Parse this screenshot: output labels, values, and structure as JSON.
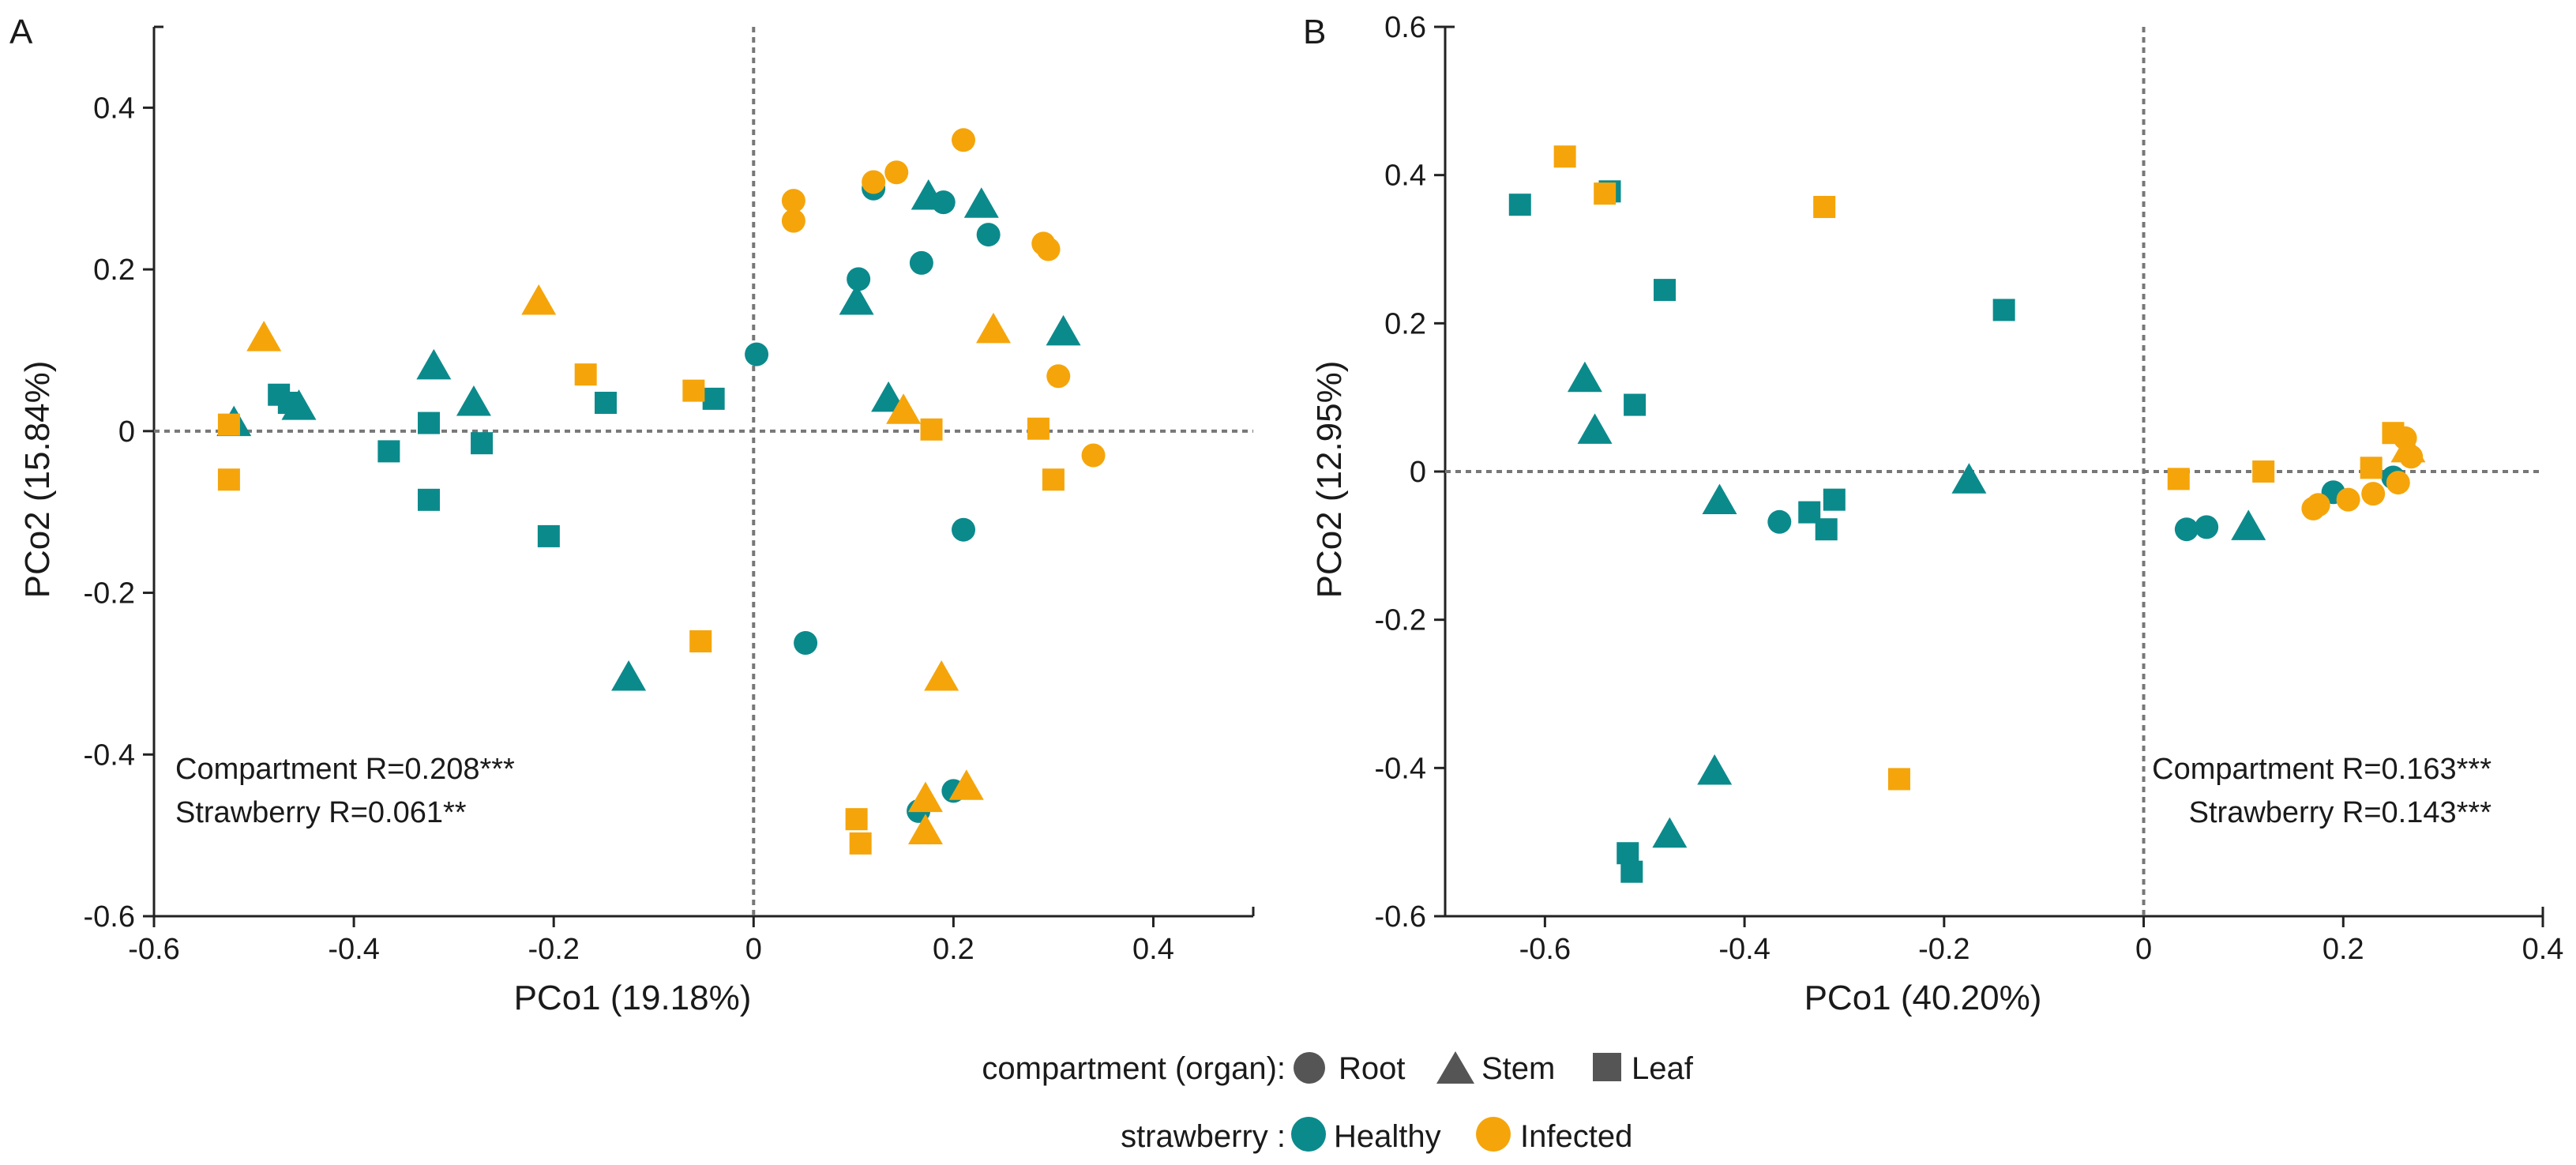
{
  "colors": {
    "healthy": "#0b8a8c",
    "infected": "#f5a50a",
    "axis": "#222222",
    "refline": "#777777",
    "legend_shape": "#555555"
  },
  "legend": {
    "compartment_title": "compartment (organ):",
    "compartment_items": [
      {
        "shape": "circle",
        "label": "Root"
      },
      {
        "shape": "triangle",
        "label": "Stem"
      },
      {
        "shape": "square",
        "label": "Leaf"
      }
    ],
    "strawberry_title": "strawberry :",
    "strawberry_items": [
      {
        "key": "healthy",
        "label": "Healthy"
      },
      {
        "key": "infected",
        "label": "Infected"
      }
    ]
  },
  "chart_data": [
    {
      "type": "scatter",
      "panel_label": "A",
      "xlabel": "PCo1 (19.18%)",
      "ylabel": "PCo2 (15.84%)",
      "xlim": [
        -0.6,
        0.5
      ],
      "ylim": [
        -0.6,
        0.5
      ],
      "xticks": [
        -0.6,
        -0.4,
        -0.2,
        0,
        0.2,
        0.4
      ],
      "yticks": [
        -0.6,
        -0.4,
        -0.2,
        0,
        0.2,
        0.4
      ],
      "xtick_labels": [
        "-0.6",
        "-0.4",
        "-0.2",
        "0",
        "0.2",
        "0.4"
      ],
      "ytick_labels": [
        "-0.6",
        "-0.4",
        "-0.2",
        "0",
        "0.2",
        "0.4"
      ],
      "annotations": [
        "Compartment  R=0.208***",
        "Strawberry R=0.061**"
      ],
      "annotation_position": "bottom-left",
      "points": [
        {
          "x": -0.52,
          "y": 0.01,
          "shape": "triangle",
          "group": "healthy"
        },
        {
          "x": -0.475,
          "y": 0.045,
          "shape": "square",
          "group": "healthy"
        },
        {
          "x": -0.465,
          "y": 0.035,
          "shape": "square",
          "group": "healthy"
        },
        {
          "x": -0.455,
          "y": 0.03,
          "shape": "triangle",
          "group": "healthy"
        },
        {
          "x": -0.365,
          "y": -0.025,
          "shape": "square",
          "group": "healthy"
        },
        {
          "x": -0.325,
          "y": 0.01,
          "shape": "square",
          "group": "healthy"
        },
        {
          "x": -0.32,
          "y": 0.08,
          "shape": "triangle",
          "group": "healthy"
        },
        {
          "x": -0.325,
          "y": -0.085,
          "shape": "square",
          "group": "healthy"
        },
        {
          "x": -0.28,
          "y": 0.035,
          "shape": "triangle",
          "group": "healthy"
        },
        {
          "x": -0.272,
          "y": -0.015,
          "shape": "square",
          "group": "healthy"
        },
        {
          "x": -0.205,
          "y": -0.13,
          "shape": "square",
          "group": "healthy"
        },
        {
          "x": -0.148,
          "y": 0.035,
          "shape": "square",
          "group": "healthy"
        },
        {
          "x": -0.125,
          "y": -0.305,
          "shape": "triangle",
          "group": "healthy"
        },
        {
          "x": -0.04,
          "y": 0.04,
          "shape": "square",
          "group": "healthy"
        },
        {
          "x": 0.003,
          "y": 0.095,
          "shape": "circle",
          "group": "healthy"
        },
        {
          "x": 0.052,
          "y": -0.262,
          "shape": "circle",
          "group": "healthy"
        },
        {
          "x": 0.103,
          "y": 0.16,
          "shape": "triangle",
          "group": "healthy"
        },
        {
          "x": 0.105,
          "y": 0.188,
          "shape": "circle",
          "group": "healthy"
        },
        {
          "x": 0.12,
          "y": 0.3,
          "shape": "circle",
          "group": "healthy"
        },
        {
          "x": 0.135,
          "y": 0.04,
          "shape": "triangle",
          "group": "healthy"
        },
        {
          "x": 0.165,
          "y": -0.47,
          "shape": "circle",
          "group": "healthy"
        },
        {
          "x": 0.168,
          "y": 0.208,
          "shape": "circle",
          "group": "healthy"
        },
        {
          "x": 0.175,
          "y": 0.29,
          "shape": "triangle",
          "group": "healthy"
        },
        {
          "x": 0.19,
          "y": 0.283,
          "shape": "circle",
          "group": "healthy"
        },
        {
          "x": 0.2,
          "y": -0.445,
          "shape": "circle",
          "group": "healthy"
        },
        {
          "x": 0.21,
          "y": -0.122,
          "shape": "circle",
          "group": "healthy"
        },
        {
          "x": 0.228,
          "y": 0.28,
          "shape": "triangle",
          "group": "healthy"
        },
        {
          "x": 0.235,
          "y": 0.243,
          "shape": "circle",
          "group": "healthy"
        },
        {
          "x": 0.31,
          "y": 0.122,
          "shape": "triangle",
          "group": "healthy"
        },
        {
          "x": -0.525,
          "y": 0.008,
          "shape": "square",
          "group": "infected"
        },
        {
          "x": -0.525,
          "y": -0.06,
          "shape": "square",
          "group": "infected"
        },
        {
          "x": -0.49,
          "y": 0.115,
          "shape": "triangle",
          "group": "infected"
        },
        {
          "x": -0.215,
          "y": 0.16,
          "shape": "triangle",
          "group": "infected"
        },
        {
          "x": -0.168,
          "y": 0.07,
          "shape": "square",
          "group": "infected"
        },
        {
          "x": -0.06,
          "y": 0.05,
          "shape": "square",
          "group": "infected"
        },
        {
          "x": -0.053,
          "y": -0.26,
          "shape": "square",
          "group": "infected"
        },
        {
          "x": 0.04,
          "y": 0.285,
          "shape": "circle",
          "group": "infected"
        },
        {
          "x": 0.04,
          "y": 0.26,
          "shape": "circle",
          "group": "infected"
        },
        {
          "x": 0.103,
          "y": -0.48,
          "shape": "square",
          "group": "infected"
        },
        {
          "x": 0.107,
          "y": -0.51,
          "shape": "square",
          "group": "infected"
        },
        {
          "x": 0.12,
          "y": 0.308,
          "shape": "circle",
          "group": "infected"
        },
        {
          "x": 0.143,
          "y": 0.32,
          "shape": "circle",
          "group": "infected"
        },
        {
          "x": 0.15,
          "y": 0.025,
          "shape": "triangle",
          "group": "infected"
        },
        {
          "x": 0.172,
          "y": -0.455,
          "shape": "triangle",
          "group": "infected"
        },
        {
          "x": 0.172,
          "y": -0.495,
          "shape": "triangle",
          "group": "infected"
        },
        {
          "x": 0.178,
          "y": 0.002,
          "shape": "square",
          "group": "infected"
        },
        {
          "x": 0.188,
          "y": -0.305,
          "shape": "triangle",
          "group": "infected"
        },
        {
          "x": 0.21,
          "y": 0.36,
          "shape": "circle",
          "group": "infected"
        },
        {
          "x": 0.213,
          "y": -0.44,
          "shape": "triangle",
          "group": "infected"
        },
        {
          "x": 0.24,
          "y": 0.125,
          "shape": "triangle",
          "group": "infected"
        },
        {
          "x": 0.285,
          "y": 0.003,
          "shape": "square",
          "group": "infected"
        },
        {
          "x": 0.29,
          "y": 0.232,
          "shape": "circle",
          "group": "infected"
        },
        {
          "x": 0.295,
          "y": 0.225,
          "shape": "circle",
          "group": "infected"
        },
        {
          "x": 0.3,
          "y": -0.06,
          "shape": "square",
          "group": "infected"
        },
        {
          "x": 0.305,
          "y": 0.068,
          "shape": "circle",
          "group": "infected"
        },
        {
          "x": 0.34,
          "y": -0.03,
          "shape": "circle",
          "group": "infected"
        }
      ]
    },
    {
      "type": "scatter",
      "panel_label": "B",
      "xlabel": "PCo1 (40.20%)",
      "ylabel": "PCo2 (12.95%)",
      "xlim": [
        -0.7,
        0.4
      ],
      "ylim": [
        -0.6,
        0.6
      ],
      "xticks": [
        -0.6,
        -0.4,
        -0.2,
        0,
        0.2,
        0.4
      ],
      "yticks": [
        -0.6,
        -0.4,
        -0.2,
        0,
        0.2,
        0.4,
        0.6
      ],
      "xtick_labels": [
        "-0.6",
        "-0.4",
        "-0.2",
        "0",
        "0.2",
        "0.4"
      ],
      "ytick_labels": [
        "-0.6",
        "-0.4",
        "-0.2",
        "0",
        "0.2",
        "0.4",
        "0.6"
      ],
      "annotations": [
        "Compartment  R=0.163***",
        "Strawberry R=0.143***"
      ],
      "annotation_position": "bottom-right",
      "points": [
        {
          "x": -0.625,
          "y": 0.36,
          "shape": "square",
          "group": "healthy"
        },
        {
          "x": -0.535,
          "y": 0.378,
          "shape": "square",
          "group": "healthy"
        },
        {
          "x": -0.56,
          "y": 0.125,
          "shape": "triangle",
          "group": "healthy"
        },
        {
          "x": -0.55,
          "y": 0.055,
          "shape": "triangle",
          "group": "healthy"
        },
        {
          "x": -0.51,
          "y": 0.09,
          "shape": "square",
          "group": "healthy"
        },
        {
          "x": -0.48,
          "y": 0.245,
          "shape": "square",
          "group": "healthy"
        },
        {
          "x": -0.425,
          "y": -0.04,
          "shape": "triangle",
          "group": "healthy"
        },
        {
          "x": -0.365,
          "y": -0.068,
          "shape": "circle",
          "group": "healthy"
        },
        {
          "x": -0.335,
          "y": -0.055,
          "shape": "square",
          "group": "healthy"
        },
        {
          "x": -0.318,
          "y": -0.078,
          "shape": "square",
          "group": "healthy"
        },
        {
          "x": -0.31,
          "y": -0.038,
          "shape": "square",
          "group": "healthy"
        },
        {
          "x": -0.175,
          "y": -0.012,
          "shape": "triangle",
          "group": "healthy"
        },
        {
          "x": -0.14,
          "y": 0.218,
          "shape": "square",
          "group": "healthy"
        },
        {
          "x": -0.43,
          "y": -0.405,
          "shape": "triangle",
          "group": "healthy"
        },
        {
          "x": -0.475,
          "y": -0.49,
          "shape": "triangle",
          "group": "healthy"
        },
        {
          "x": -0.517,
          "y": -0.515,
          "shape": "square",
          "group": "healthy"
        },
        {
          "x": -0.513,
          "y": -0.54,
          "shape": "square",
          "group": "healthy"
        },
        {
          "x": 0.043,
          "y": -0.078,
          "shape": "circle",
          "group": "healthy"
        },
        {
          "x": 0.063,
          "y": -0.075,
          "shape": "circle",
          "group": "healthy"
        },
        {
          "x": 0.105,
          "y": -0.075,
          "shape": "triangle",
          "group": "healthy"
        },
        {
          "x": 0.19,
          "y": -0.028,
          "shape": "circle",
          "group": "healthy"
        },
        {
          "x": 0.25,
          "y": -0.008,
          "shape": "circle",
          "group": "healthy"
        },
        {
          "x": -0.58,
          "y": 0.425,
          "shape": "square",
          "group": "infected"
        },
        {
          "x": -0.54,
          "y": 0.375,
          "shape": "square",
          "group": "infected"
        },
        {
          "x": -0.32,
          "y": 0.357,
          "shape": "square",
          "group": "infected"
        },
        {
          "x": -0.245,
          "y": -0.415,
          "shape": "square",
          "group": "infected"
        },
        {
          "x": 0.035,
          "y": -0.01,
          "shape": "square",
          "group": "infected"
        },
        {
          "x": 0.12,
          "y": 0.0,
          "shape": "square",
          "group": "infected"
        },
        {
          "x": 0.17,
          "y": -0.05,
          "shape": "circle",
          "group": "infected"
        },
        {
          "x": 0.175,
          "y": -0.045,
          "shape": "circle",
          "group": "infected"
        },
        {
          "x": 0.205,
          "y": -0.038,
          "shape": "circle",
          "group": "infected"
        },
        {
          "x": 0.228,
          "y": 0.005,
          "shape": "square",
          "group": "infected"
        },
        {
          "x": 0.23,
          "y": -0.03,
          "shape": "circle",
          "group": "infected"
        },
        {
          "x": 0.25,
          "y": 0.052,
          "shape": "square",
          "group": "infected"
        },
        {
          "x": 0.255,
          "y": -0.015,
          "shape": "circle",
          "group": "infected"
        },
        {
          "x": 0.262,
          "y": 0.045,
          "shape": "circle",
          "group": "infected"
        },
        {
          "x": 0.265,
          "y": 0.03,
          "shape": "triangle",
          "group": "infected"
        },
        {
          "x": 0.268,
          "y": 0.02,
          "shape": "circle",
          "group": "infected"
        }
      ]
    }
  ]
}
